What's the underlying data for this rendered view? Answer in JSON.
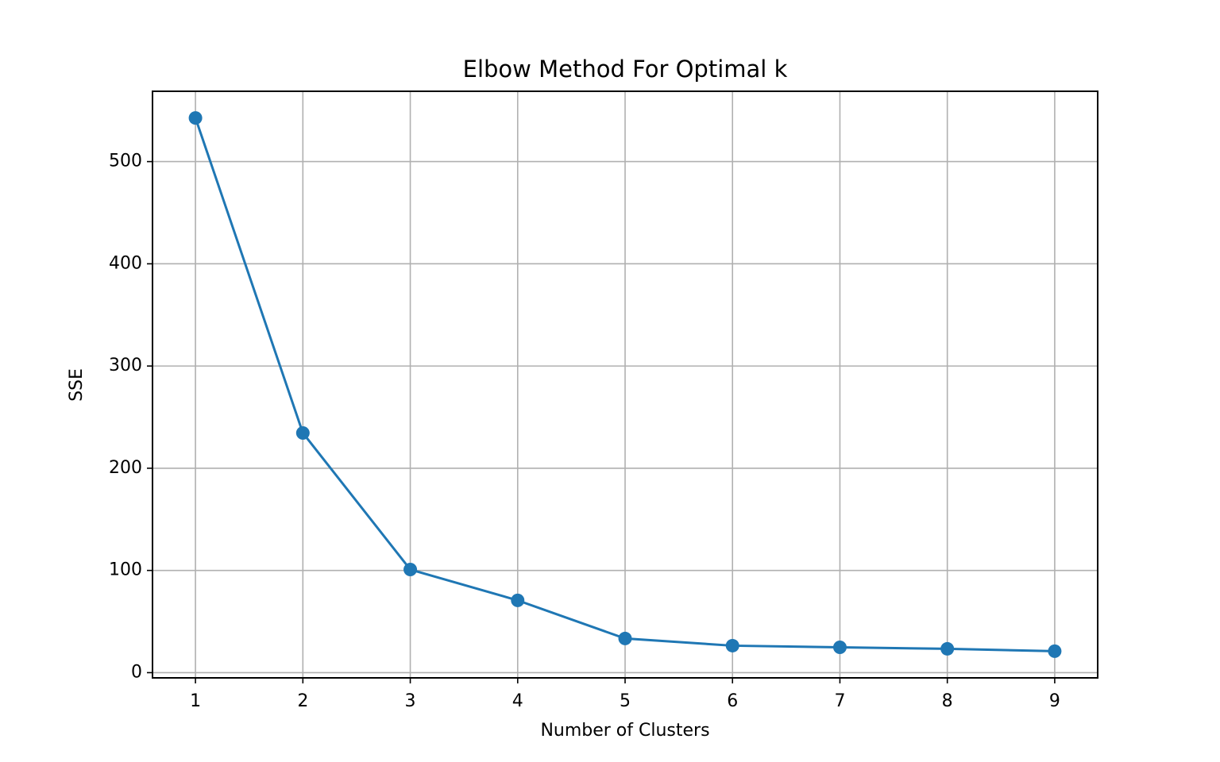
{
  "chart_data": {
    "type": "line",
    "title": "Elbow Method For Optimal k",
    "x_label": "Number of Clusters",
    "y_label": "SSE",
    "x": [
      1,
      2,
      3,
      4,
      5,
      6,
      7,
      8,
      9
    ],
    "series": [
      {
        "name": "SSE",
        "color": "#1f77b4",
        "values": [
          542.7,
          234.5,
          100.9,
          70.7,
          33.4,
          26.4,
          24.8,
          23.3,
          21.0
        ]
      }
    ],
    "xlim": [
      0.6,
      9.4
    ],
    "xticks": [
      1,
      2,
      3,
      4,
      5,
      6,
      7,
      8,
      9
    ],
    "ylim": [
      -5.1,
      568.8
    ],
    "yticks": [
      0,
      100,
      200,
      300,
      400,
      500
    ],
    "grid": true,
    "marker": "circle"
  }
}
